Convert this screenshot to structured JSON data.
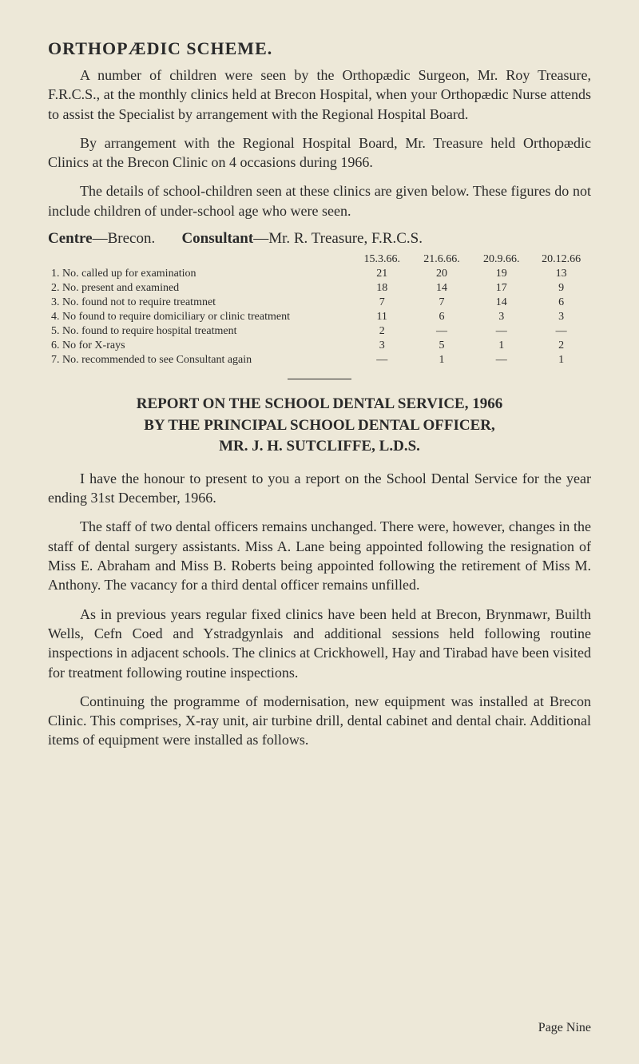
{
  "colors": {
    "background": "#ede8d8",
    "text": "#2a2a2a"
  },
  "typography": {
    "body_fontsize": 18,
    "heading_fontsize": 22,
    "table_fontsize": 14,
    "report_heading_fontsize": 19,
    "footer_fontsize": 16,
    "font_family": "Georgia, Times New Roman, serif"
  },
  "section1": {
    "heading": "ORTHOPÆDIC SCHEME.",
    "para1": "A number of children were seen by the Orthopædic Surgeon, Mr. Roy Treasure, F.R.C.S., at the monthly clinics held at Brecon Hospital, when your Orthopædic Nurse attends to assist the Specialist by arrangement with the Regional Hospital Board.",
    "para2": "By arrangement with the Regional Hospital Board, Mr. Treasure held Orthopædic Clinics at the Brecon Clinic on 4 occasions during 1966.",
    "para3": "The details of school-children seen at these clinics are given below. These figures do not include children of under-school age who were seen."
  },
  "centre_line": {
    "centre_label": "Centre",
    "centre_value": "—Brecon.",
    "consultant_label": "Consultant",
    "consultant_value": "—Mr. R. Treasure, F.R.C.S."
  },
  "table": {
    "headers": [
      "15.3.66.",
      "21.6.66.",
      "20.9.66.",
      "20.12.66"
    ],
    "rows": [
      {
        "label": "1. No. called up for examination",
        "values": [
          "21",
          "20",
          "19",
          "13"
        ]
      },
      {
        "label": "2. No. present and examined",
        "values": [
          "18",
          "14",
          "17",
          "9"
        ]
      },
      {
        "label": "3. No. found not to require treatmnet",
        "values": [
          "7",
          "7",
          "14",
          "6"
        ]
      },
      {
        "label": "4. No found to require domiciliary or clinic treatment",
        "values": [
          "11",
          "6",
          "3",
          "3"
        ]
      },
      {
        "label": "5. No. found to require hospital treatment",
        "values": [
          "2",
          "—",
          "—",
          "—"
        ]
      },
      {
        "label": "6. No for X-rays",
        "values": [
          "3",
          "5",
          "1",
          "2"
        ]
      },
      {
        "label": "7. No. recommended to see Consultant again",
        "values": [
          "—",
          "1",
          "—",
          "1"
        ]
      }
    ]
  },
  "report": {
    "title_line1": "REPORT ON THE SCHOOL DENTAL SERVICE, 1966",
    "title_line2": "BY THE PRINCIPAL SCHOOL DENTAL OFFICER,",
    "title_line3": "MR. J. H. SUTCLIFFE, L.D.S.",
    "para1": "I have the honour to present to you a report on the School Dental Service for the year ending 31st December, 1966.",
    "para2": "The staff of two dental officers remains unchanged. There were, however, changes in the staff of dental surgery assistants. Miss A. Lane being appointed following the resignation of Miss E. Abraham and Miss B. Roberts being appointed following the retirement of Miss M. Anthony. The vacancy for a third dental officer remains unfilled.",
    "para3": "As in previous years regular fixed clinics have been held at Brecon, Brynmawr, Builth Wells, Cefn Coed and Ystradgynlais and additional sessions held following routine inspections in adjacent schools. The clinics at Crickhowell, Hay and Tirabad have been visited for treatment following routine inspections.",
    "para4": "Continuing the programme of modernisation, new equipment was installed at Brecon Clinic. This comprises, X-ray unit, air turbine drill, dental cabinet and dental chair. Additional items of equipment were installed as follows."
  },
  "footer": {
    "page_label": "Page Nine"
  }
}
